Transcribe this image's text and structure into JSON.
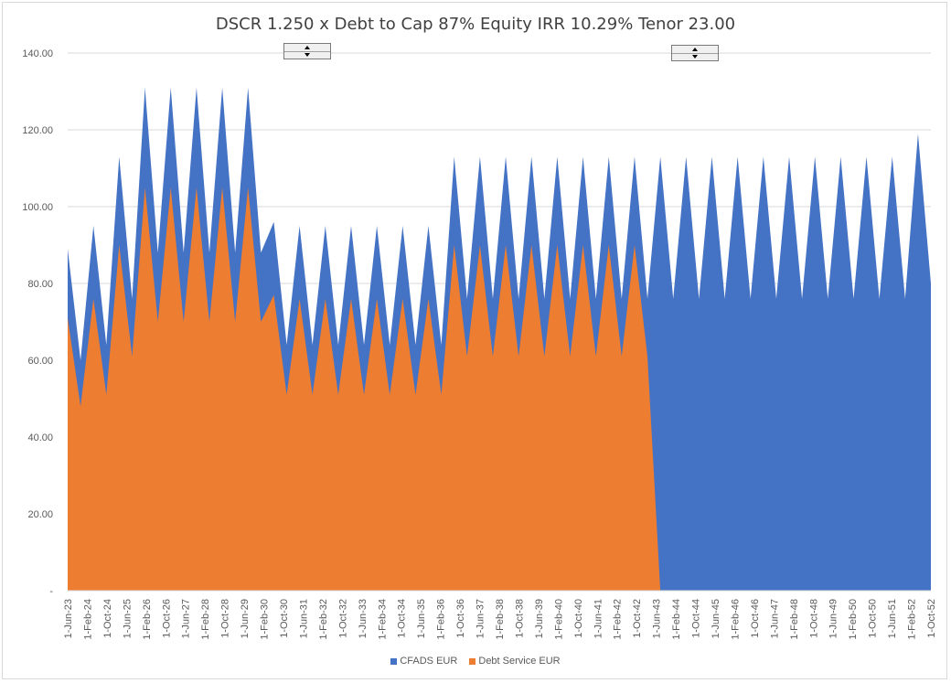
{
  "title": "DSCR  1.250 x Debt to Cap 87% Equity IRR 10.29% Tenor 23.00",
  "colors": {
    "cfads": "#4472c4",
    "debt_service": "#ed7d31",
    "grid": "#d9d9d9",
    "axis_text": "#595959"
  },
  "chart_data": {
    "type": "area",
    "title": "DSCR  1.250 x Debt to Cap 87% Equity IRR 10.29% Tenor 23.00",
    "xlabel": "",
    "ylabel": "",
    "ylim": [
      0,
      140
    ],
    "y_ticks": [
      "-",
      "20.00",
      "40.00",
      "60.00",
      "80.00",
      "100.00",
      "120.00",
      "140.00"
    ],
    "grid": true,
    "legend_position": "bottom",
    "x_tick_labels": [
      "1-Jun-23",
      "1-Feb-24",
      "1-Oct-24",
      "1-Jun-25",
      "1-Feb-26",
      "1-Oct-26",
      "1-Jun-27",
      "1-Feb-28",
      "1-Oct-28",
      "1-Jun-29",
      "1-Feb-30",
      "1-Oct-30",
      "1-Jun-31",
      "1-Feb-32",
      "1-Oct-32",
      "1-Jun-33",
      "1-Feb-34",
      "1-Oct-34",
      "1-Jun-35",
      "1-Feb-36",
      "1-Oct-36",
      "1-Jun-37",
      "1-Feb-38",
      "1-Oct-38",
      "1-Jun-39",
      "1-Feb-40",
      "1-Oct-40",
      "1-Jun-41",
      "1-Feb-42",
      "1-Oct-42",
      "1-Jun-43",
      "1-Feb-44",
      "1-Oct-44",
      "1-Jun-45",
      "1-Feb-46",
      "1-Oct-46",
      "1-Jun-47",
      "1-Feb-48",
      "1-Oct-48",
      "1-Jun-49",
      "1-Feb-50",
      "1-Oct-50",
      "1-Jun-51",
      "1-Feb-52",
      "1-Oct-52"
    ],
    "series": [
      {
        "name": "CFADS EUR",
        "values": [
          89,
          60,
          95,
          64,
          113,
          76,
          131,
          88,
          131,
          88,
          131,
          88,
          131,
          88,
          131,
          88,
          96,
          64,
          95,
          64,
          95,
          64,
          95,
          64,
          95,
          64,
          95,
          64,
          95,
          64,
          113,
          76,
          113,
          76,
          113,
          76,
          113,
          76,
          113,
          76,
          113,
          76,
          113,
          76,
          113,
          76,
          113,
          76,
          113,
          76,
          113,
          76,
          113,
          76,
          113,
          76,
          113,
          76,
          113,
          76,
          113,
          76,
          113,
          76,
          113,
          76,
          119,
          80
        ]
      },
      {
        "name": "Debt Service EUR",
        "values": [
          71,
          48,
          76,
          51,
          90,
          61,
          105,
          70,
          105,
          70,
          105,
          70,
          105,
          70,
          105,
          70,
          77,
          51,
          76,
          51,
          76,
          51,
          76,
          51,
          76,
          51,
          76,
          51,
          76,
          51,
          90,
          61,
          90,
          61,
          90,
          61,
          90,
          61,
          90,
          61,
          90,
          61,
          90,
          61,
          90,
          61,
          0,
          0,
          0,
          0,
          0,
          0,
          0,
          0,
          0,
          0,
          0,
          0,
          0,
          0,
          0,
          0,
          0,
          0,
          0,
          0,
          0,
          0
        ]
      }
    ]
  },
  "spinners": [
    {
      "name": "spinner-1"
    },
    {
      "name": "spinner-2"
    }
  ]
}
